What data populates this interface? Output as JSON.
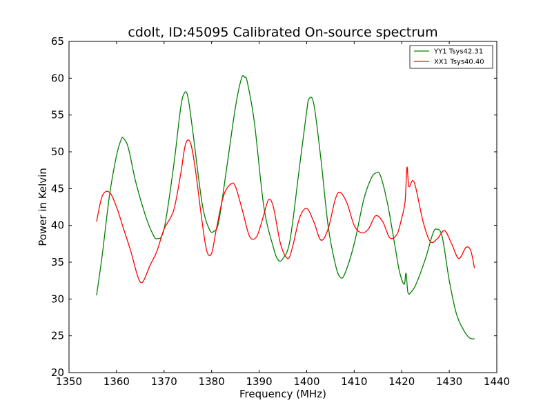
{
  "chart_data": {
    "type": "line",
    "title": "cdolt, ID:45095 Calibrated On-source spectrum",
    "xlabel": "Frequency (MHz)",
    "ylabel": "Power in Kelvin",
    "xlim": [
      1350,
      1440
    ],
    "ylim": [
      20,
      65
    ],
    "xticks": [
      "1350",
      "1360",
      "1370",
      "1380",
      "1390",
      "1400",
      "1410",
      "1420",
      "1430",
      "1440"
    ],
    "yticks": [
      "20",
      "25",
      "30",
      "35",
      "40",
      "45",
      "50",
      "55",
      "60",
      "65"
    ],
    "grid": false,
    "legend_position": "top-right",
    "series": [
      {
        "name": "YY1 Tsys42.31",
        "color": "#008000",
        "x": [
          1355.8,
          1357,
          1358.5,
          1360,
          1361,
          1361.5,
          1362.5,
          1364,
          1366,
          1367.5,
          1368.5,
          1370,
          1372,
          1373.5,
          1374.3,
          1375,
          1376,
          1378,
          1379.5,
          1380.5,
          1381.5,
          1383,
          1385,
          1386.3,
          1387,
          1387.5,
          1389,
          1391,
          1393,
          1394,
          1395,
          1396.5,
          1398.5,
          1400,
          1400.5,
          1401.5,
          1403,
          1404.5,
          1406,
          1407,
          1408,
          1410,
          1412,
          1413.5,
          1414.5,
          1415.5,
          1417,
          1418.5,
          1419.5,
          1420.5,
          1420.9,
          1421.3,
          1421.9,
          1423,
          1425,
          1426.5,
          1427.3,
          1428.5,
          1430,
          1431.5,
          1433,
          1434.3,
          1435.3
        ],
        "y": [
          30.5,
          36,
          44,
          49.5,
          51.7,
          51.8,
          50.5,
          46,
          41.5,
          39,
          38.2,
          39.5,
          48,
          56,
          58,
          57.5,
          53,
          43,
          39.5,
          39.2,
          40.5,
          47,
          56,
          60,
          60.1,
          59.5,
          54,
          42.5,
          37,
          35.3,
          35.5,
          38,
          48,
          55.5,
          57.2,
          56.5,
          49,
          40,
          34.8,
          33,
          33.4,
          37.5,
          43.5,
          46.3,
          47.1,
          46.8,
          43,
          37.5,
          33.8,
          32,
          33.5,
          30.9,
          30.9,
          32,
          35.5,
          38.8,
          39.5,
          38.5,
          32.5,
          28,
          25.8,
          24.7,
          24.6
        ]
      },
      {
        "name": "XX1 Tsys40.40",
        "color": "#ff0000",
        "x": [
          1355.8,
          1357,
          1358.5,
          1360,
          1361.5,
          1363,
          1364.5,
          1365.5,
          1367,
          1368.5,
          1370,
          1372,
          1373.5,
          1374.5,
          1375.5,
          1376.5,
          1378,
          1379,
          1380,
          1381,
          1382.5,
          1384,
          1385,
          1386.5,
          1388,
          1389.5,
          1391,
          1392,
          1393,
          1394.5,
          1396,
          1397,
          1398.5,
          1400,
          1401.5,
          1403,
          1404.5,
          1406,
          1407,
          1408.5,
          1410,
          1411.5,
          1413,
          1414.5,
          1416,
          1417.5,
          1419,
          1420,
          1420.7,
          1421.1,
          1421.5,
          1422.3,
          1423,
          1424.5,
          1426,
          1427.5,
          1429,
          1430.5,
          1432,
          1433.5,
          1434.5,
          1435.3
        ],
        "y": [
          40.5,
          44,
          44.5,
          42.5,
          39.5,
          36.5,
          33,
          32.3,
          34.5,
          36.5,
          39.5,
          42,
          47,
          51,
          51.3,
          48,
          40.5,
          36.5,
          36.2,
          39.5,
          44,
          45.6,
          45.3,
          42,
          38.5,
          38.5,
          41.5,
          43.5,
          42.5,
          37.5,
          35.5,
          37,
          41,
          42.3,
          40.5,
          38,
          39.5,
          43.5,
          44.5,
          43,
          40,
          39,
          39.5,
          41.3,
          40.5,
          38.3,
          38.8,
          41,
          43.2,
          47.9,
          45.3,
          46.1,
          45,
          40.5,
          37.8,
          38.2,
          39.3,
          37.5,
          35.5,
          37,
          36.6,
          34.2
        ]
      }
    ]
  }
}
